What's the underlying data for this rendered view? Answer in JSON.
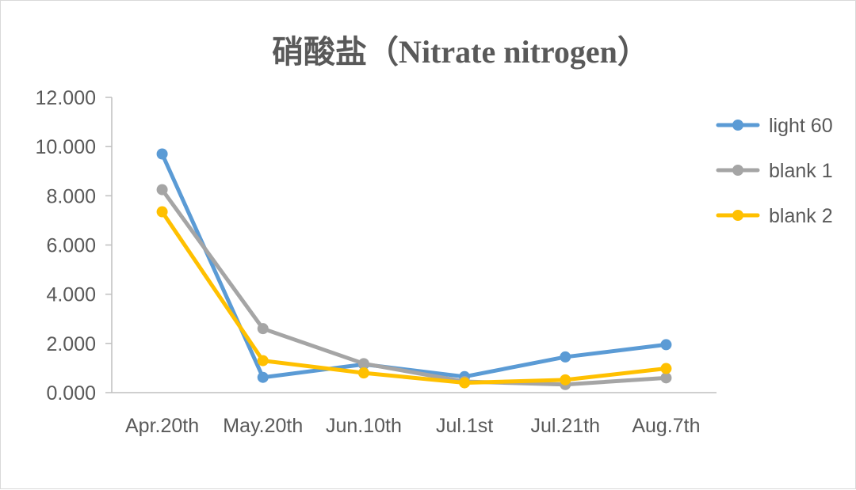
{
  "chart_data": {
    "type": "line",
    "title": "硝酸盐（Nitrate nitrogen）",
    "xlabel": "",
    "ylabel": "",
    "categories": [
      "Apr.20th",
      "May.20th",
      "Jun.10th",
      "Jul.1st",
      "Jul.21th",
      "Aug.7th"
    ],
    "y_ticks": [
      "0.000",
      "2.000",
      "4.000",
      "6.000",
      "8.000",
      "10.000",
      "12.000"
    ],
    "ylim": [
      0,
      12
    ],
    "grid": false,
    "legend_position": "right",
    "series": [
      {
        "name": "light 60",
        "color": "#5b9bd5",
        "values": [
          9.7,
          0.62,
          1.15,
          0.65,
          1.45,
          1.95
        ]
      },
      {
        "name": "blank 1",
        "color": "#a5a5a5",
        "values": [
          8.25,
          2.6,
          1.18,
          0.45,
          0.33,
          0.6
        ]
      },
      {
        "name": "blank 2",
        "color": "#ffc000",
        "values": [
          7.35,
          1.3,
          0.8,
          0.4,
          0.52,
          0.98
        ]
      }
    ]
  }
}
